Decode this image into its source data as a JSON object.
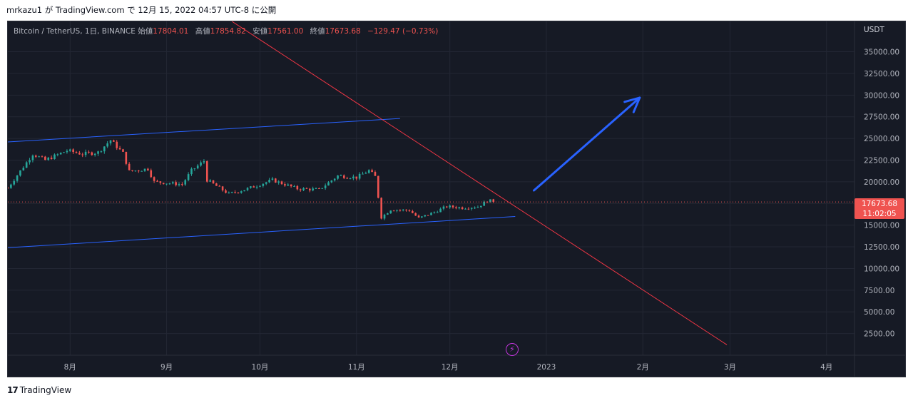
{
  "caption": "mrkazu1 が TradingView.com で 12月 15, 2022 04:57 UTC-8 に公開",
  "header": {
    "symbol": "Bitcoin / TetherUS, 1日, BINANCE",
    "open_label": "始値",
    "open_value": "17804.01",
    "high_label": "高値",
    "high_value": "17854.82",
    "low_label": "安値",
    "low_value": "17561.00",
    "close_label": "終値",
    "close_value": "17673.68",
    "change": "−129.47 (−0.73%)"
  },
  "currency": "USDT",
  "price_tag": {
    "price": "17673.68",
    "countdown": "11:02:05"
  },
  "footer": {
    "logo_mark": "17",
    "brand": "TradingView"
  },
  "colors": {
    "up": "#26a69a",
    "down": "#ef5350",
    "channel": "#2962ff",
    "trendline": "#f23645",
    "arrow": "#2962ff",
    "background": "#161a25"
  },
  "chart_data": {
    "type": "candlestick",
    "title": "Bitcoin / TetherUS, 1日, BINANCE",
    "y_axis_labels": [
      "35000.00",
      "32500.00",
      "30000.00",
      "27500.00",
      "25000.00",
      "22500.00",
      "20000.00",
      "17500.00",
      "15000.00",
      "12500.00",
      "10000.00",
      "7500.00",
      "5000.00",
      "2500.00"
    ],
    "y_axis_values": [
      35000,
      32500,
      30000,
      27500,
      25000,
      22500,
      20000,
      17500,
      15000,
      12500,
      10000,
      7500,
      5000,
      2500
    ],
    "x_axis_labels": [
      "8月",
      "9月",
      "10月",
      "11月",
      "12月",
      "2023",
      "2月",
      "3月",
      "4月"
    ],
    "x_axis_dates": [
      "2022-08-01",
      "2022-09-01",
      "2022-10-01",
      "2022-11-01",
      "2022-12-01",
      "2023-01-01",
      "2023-02-01",
      "2023-03-01",
      "2023-04-01"
    ],
    "ylim": [
      0,
      38500
    ],
    "xlim": [
      "2022-07-12",
      "2023-04-10"
    ],
    "last_price": 17673.68,
    "price_path": [
      {
        "date": "2022-07-12",
        "close": 19300
      },
      {
        "date": "2022-07-20",
        "close": 23200
      },
      {
        "date": "2022-07-24",
        "close": 22500
      },
      {
        "date": "2022-07-31",
        "close": 23600
      },
      {
        "date": "2022-08-05",
        "close": 23200
      },
      {
        "date": "2022-08-10",
        "close": 23400
      },
      {
        "date": "2022-08-14",
        "close": 24800
      },
      {
        "date": "2022-08-18",
        "close": 23300
      },
      {
        "date": "2022-08-20",
        "close": 21200
      },
      {
        "date": "2022-08-26",
        "close": 21500
      },
      {
        "date": "2022-08-28",
        "close": 20000
      },
      {
        "date": "2022-09-06",
        "close": 19700
      },
      {
        "date": "2022-09-09",
        "close": 21300
      },
      {
        "date": "2022-09-13",
        "close": 22400
      },
      {
        "date": "2022-09-14",
        "close": 20200
      },
      {
        "date": "2022-09-21",
        "close": 18600
      },
      {
        "date": "2022-09-27",
        "close": 19200
      },
      {
        "date": "2022-10-05",
        "close": 20200
      },
      {
        "date": "2022-10-13",
        "close": 19200
      },
      {
        "date": "2022-10-20",
        "close": 19100
      },
      {
        "date": "2022-10-26",
        "close": 20700
      },
      {
        "date": "2022-11-01",
        "close": 20500
      },
      {
        "date": "2022-11-05",
        "close": 21300
      },
      {
        "date": "2022-11-07",
        "close": 20600
      },
      {
        "date": "2022-11-09",
        "close": 15900
      },
      {
        "date": "2022-11-12",
        "close": 16800
      },
      {
        "date": "2022-11-18",
        "close": 16700
      },
      {
        "date": "2022-11-21",
        "close": 15800
      },
      {
        "date": "2022-11-26",
        "close": 16500
      },
      {
        "date": "2022-11-30",
        "close": 17150
      },
      {
        "date": "2022-12-05",
        "close": 17000
      },
      {
        "date": "2022-12-10",
        "close": 17130
      },
      {
        "date": "2022-12-13",
        "close": 17800
      },
      {
        "date": "2022-12-14",
        "close": 17804
      },
      {
        "date": "2022-12-15",
        "close": 17674
      }
    ],
    "drawings": {
      "channel_upper": {
        "from": {
          "date": "2022-07-12",
          "price": 24600
        },
        "to": {
          "date": "2022-11-15",
          "price": 27300
        }
      },
      "channel_lower": {
        "from": {
          "date": "2022-07-12",
          "price": 12400
        },
        "to": {
          "date": "2022-12-22",
          "price": 16000
        }
      },
      "trendline": {
        "from": {
          "date": "2022-09-22",
          "price": 38500
        },
        "to": {
          "date": "2023-02-28",
          "price": 1200
        }
      },
      "arrow": {
        "from": {
          "date": "2022-12-28",
          "price": 19000
        },
        "to": {
          "date": "2023-01-31",
          "price": 29700
        }
      }
    }
  }
}
